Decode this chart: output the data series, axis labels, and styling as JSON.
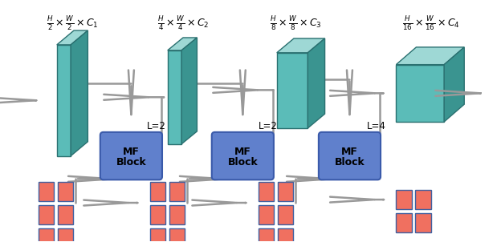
{
  "bg_color": "#ffffff",
  "teal_face": "#5bbcb8",
  "teal_top": "#9ed8d5",
  "teal_side": "#3a9490",
  "teal_edge": "#2a7070",
  "mf_block_color": "#6080cc",
  "mf_block_edge": "#3a5aaa",
  "arrow_color": "#999999",
  "red_square_face": "#f07060",
  "red_square_edge": "#4060a0",
  "label_texts": [
    "$\\frac{H}{2} \\times \\frac{W}{2} \\times C_1$",
    "$\\frac{H}{4} \\times \\frac{W}{4} \\times C_2$",
    "$\\frac{H}{8} \\times \\frac{W}{8} \\times C_3$",
    "$\\frac{H}{16} \\times \\frac{W}{16} \\times C_4$"
  ],
  "L_labels": [
    "L=2",
    "L=2",
    "L=4"
  ],
  "fig_w": 6.24,
  "fig_h": 3.02
}
